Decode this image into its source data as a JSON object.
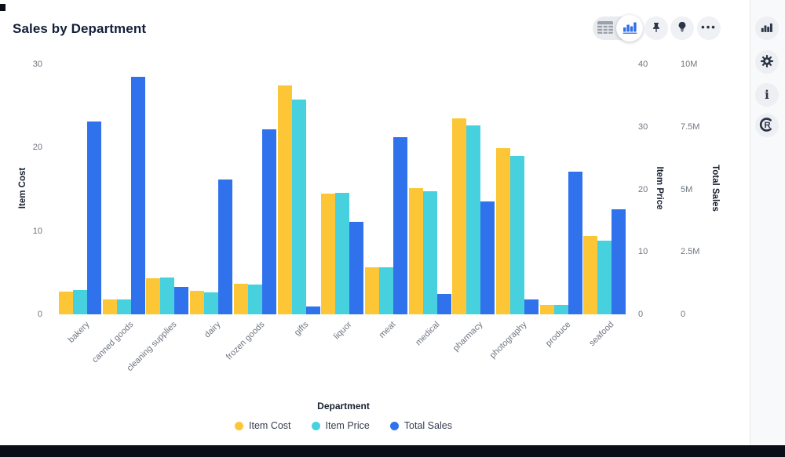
{
  "header": {
    "title": "Sales by Department"
  },
  "toolbar": {
    "view_toggle": {
      "options": [
        "table-view",
        "chart-view"
      ],
      "selected": "chart-view"
    },
    "buttons": [
      "pin",
      "insights",
      "more-options"
    ]
  },
  "right_rail": {
    "buttons": [
      "chart",
      "settings",
      "info",
      "retool"
    ]
  },
  "colors": {
    "item_cost": "#FCC637",
    "item_price": "#47D1DE",
    "total_sales": "#2F72EC",
    "accent_blue": "#2E70EA"
  },
  "chart_data": {
    "type": "bar",
    "title": "Sales by Department",
    "grid": false,
    "legend_position": "bottom",
    "xlabel": "Department",
    "categories": [
      "bakery",
      "canned goods",
      "cleaning supplies",
      "dairy",
      "frozen goods",
      "gifts",
      "liquor",
      "meat",
      "medical",
      "pharmacy",
      "photography",
      "produce",
      "seafood"
    ],
    "series": [
      {
        "name": "Item Cost",
        "color": "#FCC637",
        "axis": "left",
        "axis_max": 30,
        "values": [
          2.7,
          1.8,
          4.3,
          2.8,
          3.7,
          27.5,
          14.5,
          5.6,
          15.1,
          23.5,
          19.9,
          1.1,
          9.4
        ]
      },
      {
        "name": "Item Price",
        "color": "#47D1DE",
        "axis": "right1",
        "axis_max": 40,
        "values": [
          3.9,
          2.4,
          5.9,
          3.5,
          4.8,
          34.4,
          19.4,
          7.5,
          19.7,
          30.2,
          25.3,
          1.5,
          11.8
        ]
      },
      {
        "name": "Total Sales",
        "color": "#2F72EC",
        "axis": "right2",
        "axis_max": 10,
        "unit": "M",
        "values": [
          7.7,
          9.5,
          1.1,
          5.4,
          7.4,
          0.3,
          3.7,
          7.1,
          0.8,
          4.5,
          0.6,
          5.7,
          4.2
        ]
      }
    ],
    "axes": {
      "left": {
        "title": "Item Cost",
        "range": [
          0,
          30
        ],
        "ticks": [
          "0",
          "10",
          "20",
          "30"
        ]
      },
      "right1": {
        "title": "Item Price",
        "range": [
          0,
          40
        ],
        "ticks": [
          "0",
          "10",
          "20",
          "30",
          "40"
        ]
      },
      "right2": {
        "title": "Total Sales",
        "range": [
          0,
          10000000
        ],
        "ticks": [
          "0",
          "2.5M",
          "5M",
          "7.5M",
          "10M"
        ]
      }
    }
  }
}
